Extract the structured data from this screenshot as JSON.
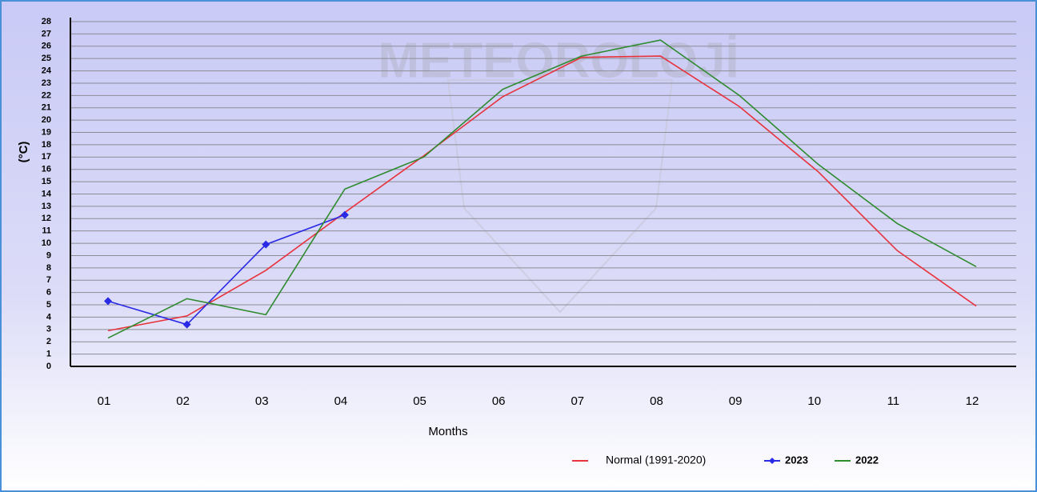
{
  "chart_data": {
    "type": "line",
    "watermark": "METEOROLOJİ",
    "ylabel": "(°C)",
    "xlabel": "Months",
    "categories": [
      "01",
      "02",
      "03",
      "04",
      "05",
      "06",
      "07",
      "08",
      "09",
      "10",
      "11",
      "12"
    ],
    "series": [
      {
        "name": "Normal (1991-2020)",
        "color": "#e8323c",
        "marker": false,
        "values": [
          2.9,
          4.1,
          7.8,
          12.5,
          17.1,
          21.9,
          25.1,
          25.2,
          21.1,
          15.8,
          9.4,
          4.9
        ]
      },
      {
        "name": "2023",
        "color": "#2a2ae6",
        "marker": true,
        "values": [
          5.3,
          3.4,
          9.9,
          12.3,
          null,
          null,
          null,
          null,
          null,
          null,
          null,
          null
        ]
      },
      {
        "name": "2022",
        "color": "#2e8b2e",
        "marker": false,
        "values": [
          2.3,
          5.5,
          4.2,
          14.4,
          17.0,
          22.5,
          25.2,
          26.5,
          22.0,
          16.4,
          11.6,
          8.1
        ]
      }
    ],
    "ylim": [
      0,
      28
    ],
    "yticks": [
      0,
      1,
      2,
      3,
      4,
      5,
      6,
      7,
      8,
      9,
      10,
      11,
      12,
      13,
      14,
      15,
      16,
      17,
      18,
      19,
      20,
      21,
      22,
      23,
      24,
      25,
      26,
      27,
      28
    ],
    "grid": true,
    "legend": "bottom"
  }
}
